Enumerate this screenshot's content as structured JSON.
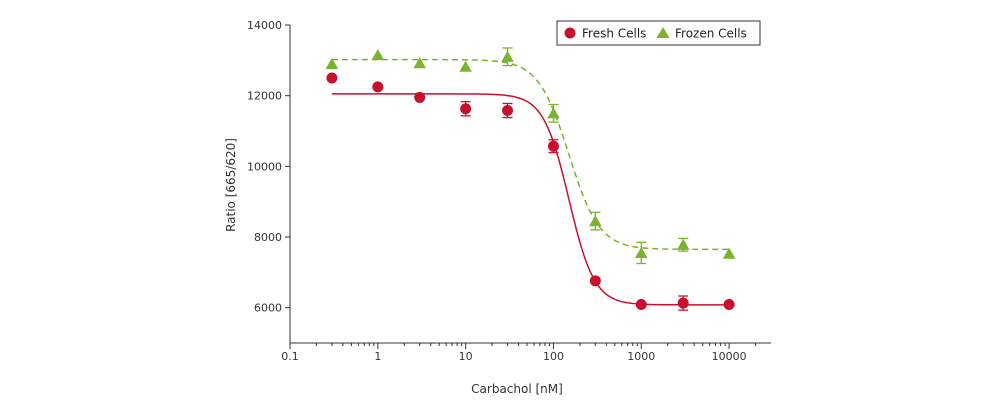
{
  "chart_data": {
    "type": "scatter",
    "xlabel": "Carbachol [nM]",
    "ylabel": "Ratio [665/620]",
    "xscale": "log",
    "xlim": [
      0.1,
      30000
    ],
    "ylim": [
      5000,
      14000
    ],
    "x_ticks": [
      0.1,
      1,
      10,
      100,
      1000,
      10000
    ],
    "x_tick_labels": [
      "0.1",
      "1",
      "10",
      "100",
      "1000",
      "10000"
    ],
    "y_ticks": [
      6000,
      8000,
      10000,
      12000,
      14000
    ],
    "y_tick_labels": [
      "6000",
      "8000",
      "10000",
      "12000",
      "14000"
    ],
    "legend_position": "top-right",
    "series": [
      {
        "name": "Fresh Cells",
        "color": "#c8102e",
        "marker": "circle",
        "line_style": "solid",
        "x": [
          0.3,
          1,
          3,
          10,
          30,
          100,
          300,
          1000,
          3000,
          10000
        ],
        "y": [
          12500,
          12250,
          11950,
          11630,
          11580,
          10570,
          6760,
          6090,
          6130,
          6090
        ],
        "error": [
          0,
          0,
          0,
          200,
          200,
          180,
          0,
          0,
          200,
          0
        ],
        "fit": {
          "top": 12050,
          "bottom": 6080,
          "ec50": 150,
          "hill": 3.0
        }
      },
      {
        "name": "Frozen Cells",
        "color": "#7ab32e",
        "marker": "triangle",
        "line_style": "dashed",
        "x": [
          0.3,
          1,
          3,
          10,
          30,
          100,
          300,
          1000,
          3000,
          10000
        ],
        "y": [
          12900,
          13150,
          12920,
          12820,
          13100,
          11500,
          8450,
          7550,
          7780,
          7530
        ],
        "error": [
          0,
          0,
          0,
          0,
          250,
          250,
          250,
          300,
          180,
          0
        ],
        "fit": {
          "top": 13020,
          "bottom": 7650,
          "ec50": 150,
          "hill": 2.5
        }
      }
    ]
  }
}
